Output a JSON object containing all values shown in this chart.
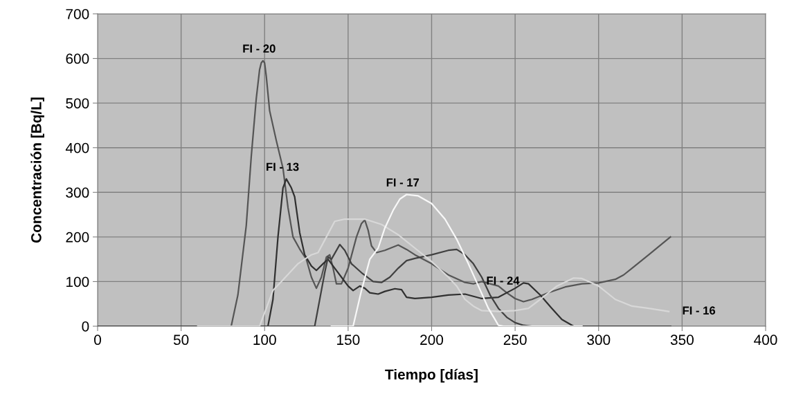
{
  "chart_data": {
    "type": "line",
    "xlabel": "Tiempo [días]",
    "ylabel": "Concentración [Bq/L]",
    "xlim": [
      0,
      400
    ],
    "xticks": [
      0,
      50,
      100,
      150,
      200,
      250,
      300,
      350,
      400
    ],
    "ylim": [
      0,
      700
    ],
    "yticks": [
      0,
      100,
      200,
      300,
      400,
      500,
      600,
      700
    ],
    "grid": true,
    "marker": "none",
    "line_style": "solid",
    "series": [
      {
        "color": "#555555",
        "x": [
          75,
          80,
          84,
          89,
          92,
          95,
          97,
          98,
          99,
          100,
          101,
          103,
          107,
          111,
          114,
          117,
          121,
          125,
          128,
          131,
          134,
          137,
          139,
          141,
          143,
          146,
          150,
          155,
          158,
          160,
          162,
          164,
          167,
          172,
          180,
          185,
          190,
          200,
          210,
          220,
          225,
          230,
          240,
          245,
          250,
          255,
          260,
          270,
          280,
          290,
          300,
          310,
          315,
          320,
          330,
          343
        ],
        "values": [
          0,
          0,
          70,
          225,
          380,
          510,
          575,
          590,
          595,
          590,
          560,
          483,
          416,
          354,
          266,
          200,
          173,
          150,
          110,
          85,
          110,
          155,
          160,
          130,
          95,
          95,
          130,
          200,
          230,
          238,
          215,
          180,
          165,
          170,
          182,
          172,
          160,
          140,
          115,
          98,
          95,
          100,
          90,
          75,
          62,
          55,
          60,
          75,
          88,
          95,
          97,
          105,
          115,
          130,
          160,
          200
        ]
      },
      {
        "color": "#303030",
        "x": [
          0,
          100,
          102,
          105,
          108,
          111,
          113,
          116,
          118,
          121,
          124,
          128,
          131,
          135,
          138,
          142,
          146,
          150,
          153,
          157,
          160,
          163,
          168,
          172,
          178,
          182,
          185,
          190,
          200,
          210,
          220,
          230,
          240,
          250,
          255,
          258,
          265,
          272,
          278,
          285,
          343
        ],
        "values": [
          0,
          0,
          0,
          60,
          200,
          310,
          330,
          310,
          290,
          210,
          160,
          135,
          125,
          140,
          150,
          130,
          110,
          90,
          80,
          90,
          85,
          75,
          72,
          78,
          84,
          82,
          65,
          62,
          65,
          70,
          72,
          62,
          65,
          85,
          97,
          95,
          70,
          40,
          15,
          0,
          0
        ]
      },
      {
        "color": "#404040",
        "x": [
          0,
          130,
          133,
          136,
          138,
          140,
          145,
          148,
          152,
          158,
          165,
          170,
          175,
          180,
          185,
          190,
          200,
          210,
          215,
          220,
          225,
          230,
          235,
          240,
          245,
          250,
          255,
          260,
          343
        ],
        "values": [
          0,
          0,
          60,
          120,
          155,
          150,
          183,
          170,
          140,
          120,
          100,
          98,
          110,
          130,
          147,
          152,
          160,
          170,
          172,
          160,
          140,
          110,
          70,
          40,
          20,
          8,
          2,
          0,
          0
        ]
      },
      {
        "color": "#d8d8d8",
        "x": [
          60,
          97,
          100,
          105,
          110,
          115,
          120,
          128,
          132,
          137,
          142,
          148,
          160,
          170,
          180,
          190,
          200,
          210,
          215,
          220,
          225,
          230,
          240,
          250,
          258,
          265,
          275,
          285,
          290,
          300,
          310,
          320,
          330,
          342
        ],
        "values": [
          0,
          0,
          30,
          80,
          100,
          120,
          140,
          160,
          165,
          200,
          235,
          240,
          240,
          228,
          205,
          175,
          145,
          110,
          90,
          60,
          45,
          35,
          33,
          35,
          40,
          60,
          90,
          108,
          107,
          90,
          60,
          45,
          40,
          33
        ]
      },
      {
        "color": "#f8f8f8",
        "x": [
          140,
          153,
          158,
          163,
          168,
          172,
          177,
          181,
          185,
          192,
          200,
          208,
          215,
          222,
          228,
          234,
          238,
          240,
          243,
          290
        ],
        "values": [
          0,
          0,
          80,
          150,
          175,
          220,
          260,
          285,
          295,
          292,
          275,
          240,
          195,
          140,
          90,
          40,
          15,
          2,
          0,
          0
        ]
      }
    ],
    "annotations": [
      {
        "text": "FI - 20",
        "x": 99,
        "y": 595
      },
      {
        "text": "FI - 13",
        "x": 113,
        "y": 330
      },
      {
        "text": "FI - 17",
        "x": 185,
        "y": 295
      },
      {
        "text": "FI - 24",
        "x": 245,
        "y": 75
      },
      {
        "text": "FI - 16",
        "x": 342,
        "y": 33
      }
    ]
  }
}
